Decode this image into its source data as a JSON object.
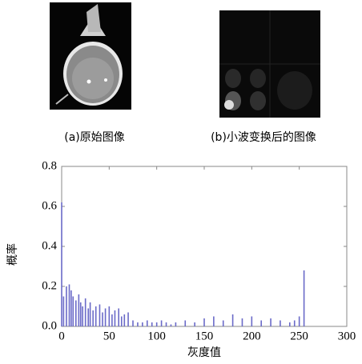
{
  "captions": [
    "(a)原始图像",
    "(b)小波变换后的图像"
  ],
  "chart_data": {
    "type": "bar",
    "ylabel": "概率",
    "xlabel": "灰度值",
    "color": "#6a6ac8",
    "x": [
      0,
      2,
      5,
      8,
      10,
      12,
      15,
      18,
      20,
      22,
      25,
      28,
      30,
      33,
      36,
      40,
      43,
      46,
      50,
      53,
      56,
      60,
      63,
      66,
      70,
      75,
      80,
      85,
      90,
      95,
      100,
      105,
      110,
      115,
      120,
      130,
      140,
      150,
      160,
      170,
      180,
      190,
      200,
      210,
      220,
      230,
      240,
      245,
      250,
      255
    ],
    "values": [
      0.62,
      0.15,
      0.2,
      0.21,
      0.18,
      0.15,
      0.13,
      0.16,
      0.12,
      0.1,
      0.14,
      0.09,
      0.12,
      0.08,
      0.1,
      0.11,
      0.07,
      0.09,
      0.1,
      0.06,
      0.08,
      0.09,
      0.05,
      0.06,
      0.07,
      0.03,
      0.02,
      0.02,
      0.03,
      0.02,
      0.02,
      0.03,
      0.02,
      0.01,
      0.02,
      0.03,
      0.02,
      0.04,
      0.05,
      0.03,
      0.06,
      0.04,
      0.05,
      0.03,
      0.04,
      0.03,
      0.02,
      0.03,
      0.05,
      0.28
    ],
    "xlim": [
      0,
      300
    ],
    "xticks": [
      0,
      50,
      100,
      150,
      200,
      250,
      300
    ],
    "ylim": [
      0,
      0.8
    ],
    "yticks": [
      {
        "value": 0,
        "label": "0.0"
      },
      0.2,
      0.4,
      0.6,
      0.8
    ]
  }
}
